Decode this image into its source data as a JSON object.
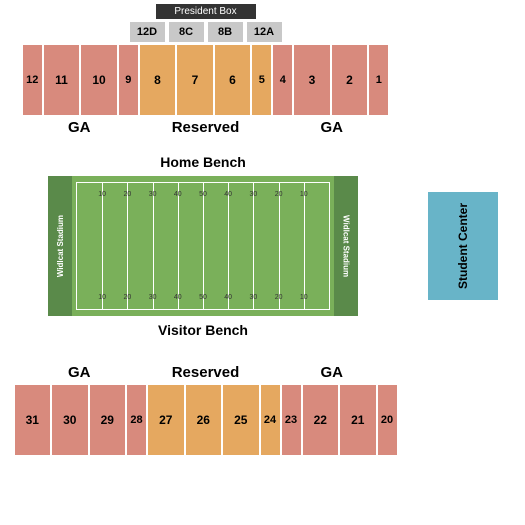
{
  "colors": {
    "ga": "#d88a7d",
    "reserved": "#e5a860",
    "box": "#c8c8c8",
    "student": "#68b4c8",
    "president": "#333333",
    "endzone": "#5a8a4a",
    "field": "#7ab05a",
    "fieldBorder": "#c8e0b8"
  },
  "presidentBox": "President Box",
  "boxes": [
    {
      "label": "12D",
      "color": "#c8c8c8"
    },
    {
      "label": "8C",
      "color": "#c8c8c8"
    },
    {
      "label": "8B",
      "color": "#c8c8c8"
    },
    {
      "label": "12A",
      "color": "#c8c8c8"
    }
  ],
  "northSections": [
    {
      "label": "12",
      "color": "#d88a7d",
      "width": "narrow"
    },
    {
      "label": "11",
      "color": "#d88a7d",
      "width": "wide"
    },
    {
      "label": "10",
      "color": "#d88a7d",
      "width": "wide"
    },
    {
      "label": "9",
      "color": "#d88a7d",
      "width": "narrow"
    },
    {
      "label": "8",
      "color": "#e5a860",
      "width": "wide"
    },
    {
      "label": "7",
      "color": "#e5a860",
      "width": "wide"
    },
    {
      "label": "6",
      "color": "#e5a860",
      "width": "wide"
    },
    {
      "label": "5",
      "color": "#e5a860",
      "width": "narrow"
    },
    {
      "label": "4",
      "color": "#d88a7d",
      "width": "narrow"
    },
    {
      "label": "3",
      "color": "#d88a7d",
      "width": "wide"
    },
    {
      "label": "2",
      "color": "#d88a7d",
      "width": "wide"
    },
    {
      "label": "1",
      "color": "#d88a7d",
      "width": "narrow"
    }
  ],
  "northLabels": {
    "left": "GA",
    "center": "Reserved",
    "right": "GA"
  },
  "homeBench": "Home Bench",
  "visitorBench": "Visitor Bench",
  "field": {
    "endzoneText": "Widlcat Stadium",
    "yardNumbers": [
      "10",
      "20",
      "30",
      "40",
      "50",
      "40",
      "30",
      "20",
      "10"
    ]
  },
  "studentCenter": "Student Center",
  "southLabels": {
    "left": "GA",
    "center": "Reserved",
    "right": "GA"
  },
  "southSections": [
    {
      "label": "31",
      "color": "#d88a7d",
      "width": "wide"
    },
    {
      "label": "30",
      "color": "#d88a7d",
      "width": "wide"
    },
    {
      "label": "29",
      "color": "#d88a7d",
      "width": "wide"
    },
    {
      "label": "28",
      "color": "#d88a7d",
      "width": "narrow"
    },
    {
      "label": "27",
      "color": "#e5a860",
      "width": "wide"
    },
    {
      "label": "26",
      "color": "#e5a860",
      "width": "wide"
    },
    {
      "label": "25",
      "color": "#e5a860",
      "width": "wide"
    },
    {
      "label": "24",
      "color": "#e5a860",
      "width": "narrow"
    },
    {
      "label": "23",
      "color": "#d88a7d",
      "width": "narrow"
    },
    {
      "label": "22",
      "color": "#d88a7d",
      "width": "wide"
    },
    {
      "label": "21",
      "color": "#d88a7d",
      "width": "wide"
    },
    {
      "label": "20",
      "color": "#d88a7d",
      "width": "narrow"
    }
  ]
}
